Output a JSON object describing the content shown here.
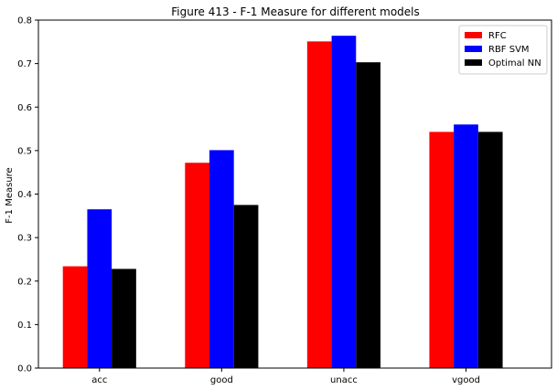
{
  "chart_data": {
    "type": "bar",
    "title": "Figure 413 - F-1 Measure for different models",
    "xlabel": "",
    "ylabel": "F-1 Measure",
    "categories": [
      "acc",
      "good",
      "unacc",
      "vgood"
    ],
    "series": [
      {
        "name": "RFC",
        "color": "#ff0000",
        "values": [
          0.234,
          0.472,
          0.751,
          0.543
        ]
      },
      {
        "name": "RBF SVM",
        "color": "#0000ff",
        "values": [
          0.365,
          0.501,
          0.764,
          0.56
        ]
      },
      {
        "name": "Optimal NN",
        "color": "#000000",
        "values": [
          0.228,
          0.375,
          0.703,
          0.543
        ]
      }
    ],
    "ylim": [
      0,
      0.8
    ],
    "yticks": [
      0.0,
      0.1,
      0.2,
      0.3,
      0.4,
      0.5,
      0.6,
      0.7,
      0.8
    ],
    "ytick_labels": [
      "0.0",
      "0.1",
      "0.2",
      "0.3",
      "0.4",
      "0.5",
      "0.6",
      "0.7",
      "0.8"
    ],
    "grid": false,
    "legend_position": "top-right"
  }
}
